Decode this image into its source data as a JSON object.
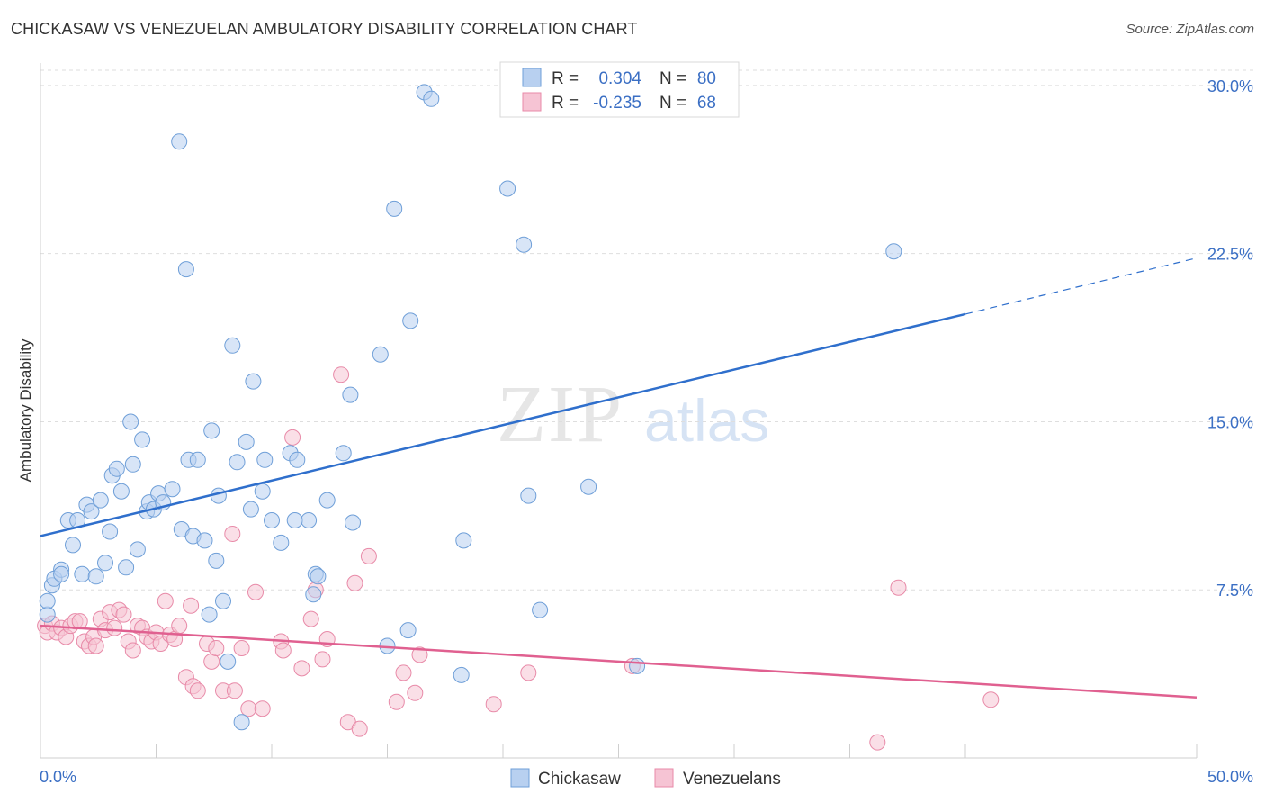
{
  "header": {
    "title": "CHICKASAW VS VENEZUELAN AMBULATORY DISABILITY CORRELATION CHART",
    "source": "Source: ZipAtlas.com"
  },
  "watermark": {
    "zip": "ZIP",
    "atlas": "atlas"
  },
  "colors": {
    "chickasaw_fill": "#b8d0f0",
    "chickasaw_stroke": "#6f9fd8",
    "chickasaw_line": "#2f6fcc",
    "venezuelan_fill": "#f6c4d4",
    "venezuelan_stroke": "#e88aa8",
    "venezuelan_line": "#e06090",
    "tick_text": "#3b6fc4"
  },
  "legend": {
    "rows": [
      {
        "r_label": "R =",
        "r_value": "0.304",
        "n_label": "N =",
        "n_value": "80"
      },
      {
        "r_label": "R =",
        "r_value": "-0.235",
        "n_label": "N =",
        "n_value": "68"
      }
    ]
  },
  "bottom_legend": {
    "items": [
      "Chickasaw",
      "Venezuelans"
    ]
  },
  "chart_data": {
    "type": "scatter",
    "title": "CHICKASAW VS VENEZUELAN AMBULATORY DISABILITY CORRELATION CHART",
    "xlabel": "",
    "ylabel": "Ambulatory Disability",
    "xlim": [
      0,
      50
    ],
    "ylim": [
      0,
      31
    ],
    "x_tick_labels": [
      "0.0%",
      "50.0%"
    ],
    "y_ticks": [
      7.5,
      15.0,
      22.5,
      30.0
    ],
    "y_tick_labels": [
      "7.5%",
      "15.0%",
      "22.5%",
      "30.0%"
    ],
    "grid": true,
    "series": [
      {
        "name": "Chickasaw",
        "r": 0.304,
        "n": 80,
        "trend": {
          "x0": 0,
          "y0": 9.9,
          "x1": 40,
          "y1": 19.8,
          "dashed_to_x": 50,
          "dashed_to_y": 22.3
        },
        "points": [
          [
            0.3,
            6.4
          ],
          [
            0.3,
            7.0
          ],
          [
            0.5,
            7.7
          ],
          [
            0.6,
            8.0
          ],
          [
            0.9,
            8.4
          ],
          [
            0.9,
            8.2
          ],
          [
            1.2,
            10.6
          ],
          [
            1.4,
            9.5
          ],
          [
            1.6,
            10.6
          ],
          [
            1.8,
            8.2
          ],
          [
            2.0,
            11.3
          ],
          [
            2.2,
            11.0
          ],
          [
            2.4,
            8.1
          ],
          [
            2.6,
            11.5
          ],
          [
            2.8,
            8.7
          ],
          [
            3.0,
            10.1
          ],
          [
            3.1,
            12.6
          ],
          [
            3.3,
            12.9
          ],
          [
            3.5,
            11.9
          ],
          [
            3.7,
            8.5
          ],
          [
            3.9,
            15.0
          ],
          [
            4.0,
            13.1
          ],
          [
            4.2,
            9.3
          ],
          [
            4.4,
            14.2
          ],
          [
            4.6,
            11.0
          ],
          [
            4.7,
            11.4
          ],
          [
            4.9,
            11.1
          ],
          [
            5.1,
            11.8
          ],
          [
            5.3,
            11.4
          ],
          [
            5.7,
            12.0
          ],
          [
            6.0,
            27.5
          ],
          [
            6.1,
            10.2
          ],
          [
            6.3,
            21.8
          ],
          [
            6.4,
            13.3
          ],
          [
            6.6,
            9.9
          ],
          [
            6.8,
            13.3
          ],
          [
            7.1,
            9.7
          ],
          [
            7.3,
            6.4
          ],
          [
            7.4,
            14.6
          ],
          [
            7.6,
            8.8
          ],
          [
            7.7,
            11.7
          ],
          [
            7.9,
            7.0
          ],
          [
            8.1,
            4.3
          ],
          [
            8.3,
            18.4
          ],
          [
            8.5,
            13.2
          ],
          [
            8.7,
            1.6
          ],
          [
            8.9,
            14.1
          ],
          [
            9.1,
            11.1
          ],
          [
            9.2,
            16.8
          ],
          [
            9.6,
            11.9
          ],
          [
            9.7,
            13.3
          ],
          [
            10.0,
            10.6
          ],
          [
            10.4,
            9.6
          ],
          [
            10.8,
            13.6
          ],
          [
            11.0,
            10.6
          ],
          [
            11.1,
            13.3
          ],
          [
            11.6,
            10.6
          ],
          [
            11.8,
            7.3
          ],
          [
            11.9,
            8.2
          ],
          [
            12.0,
            8.1
          ],
          [
            12.4,
            11.5
          ],
          [
            13.1,
            13.6
          ],
          [
            13.4,
            16.2
          ],
          [
            13.5,
            10.5
          ],
          [
            14.7,
            18.0
          ],
          [
            15.0,
            5.0
          ],
          [
            15.3,
            24.5
          ],
          [
            15.9,
            5.7
          ],
          [
            16.0,
            19.5
          ],
          [
            16.6,
            29.7
          ],
          [
            16.9,
            29.4
          ],
          [
            18.2,
            3.7
          ],
          [
            18.3,
            9.7
          ],
          [
            20.2,
            25.4
          ],
          [
            20.9,
            22.9
          ],
          [
            21.1,
            11.7
          ],
          [
            21.6,
            6.6
          ],
          [
            23.7,
            12.1
          ],
          [
            25.8,
            4.1
          ],
          [
            36.9,
            22.6
          ]
        ]
      },
      {
        "name": "Venezuelans",
        "r": -0.235,
        "n": 68,
        "trend": {
          "x0": 0,
          "y0": 5.9,
          "x1": 50,
          "y1": 2.7
        },
        "points": [
          [
            0.2,
            5.9
          ],
          [
            0.3,
            5.6
          ],
          [
            0.5,
            6.0
          ],
          [
            0.7,
            5.6
          ],
          [
            0.9,
            5.8
          ],
          [
            1.1,
            5.4
          ],
          [
            1.3,
            5.9
          ],
          [
            1.5,
            6.1
          ],
          [
            1.7,
            6.1
          ],
          [
            1.9,
            5.2
          ],
          [
            2.1,
            5.0
          ],
          [
            2.3,
            5.4
          ],
          [
            2.4,
            5.0
          ],
          [
            2.6,
            6.2
          ],
          [
            2.8,
            5.7
          ],
          [
            3.0,
            6.5
          ],
          [
            3.2,
            5.8
          ],
          [
            3.4,
            6.6
          ],
          [
            3.6,
            6.4
          ],
          [
            3.8,
            5.2
          ],
          [
            4.0,
            4.8
          ],
          [
            4.2,
            5.9
          ],
          [
            4.4,
            5.8
          ],
          [
            4.6,
            5.4
          ],
          [
            4.8,
            5.2
          ],
          [
            5.0,
            5.6
          ],
          [
            5.2,
            5.1
          ],
          [
            5.4,
            7.0
          ],
          [
            5.6,
            5.5
          ],
          [
            5.8,
            5.3
          ],
          [
            6.0,
            5.9
          ],
          [
            6.3,
            3.6
          ],
          [
            6.5,
            6.8
          ],
          [
            6.6,
            3.2
          ],
          [
            6.8,
            3.0
          ],
          [
            7.2,
            5.1
          ],
          [
            7.4,
            4.3
          ],
          [
            7.6,
            4.9
          ],
          [
            7.9,
            3.0
          ],
          [
            8.3,
            10.0
          ],
          [
            8.4,
            3.0
          ],
          [
            8.7,
            4.9
          ],
          [
            9.0,
            2.2
          ],
          [
            9.3,
            7.4
          ],
          [
            9.6,
            2.2
          ],
          [
            10.4,
            5.2
          ],
          [
            10.5,
            4.8
          ],
          [
            10.9,
            14.3
          ],
          [
            11.3,
            4.0
          ],
          [
            11.7,
            6.2
          ],
          [
            11.9,
            7.5
          ],
          [
            12.2,
            4.4
          ],
          [
            12.4,
            5.3
          ],
          [
            13.0,
            17.1
          ],
          [
            13.3,
            1.6
          ],
          [
            13.6,
            7.8
          ],
          [
            13.8,
            1.3
          ],
          [
            14.2,
            9.0
          ],
          [
            15.4,
            2.5
          ],
          [
            15.7,
            3.8
          ],
          [
            16.2,
            2.9
          ],
          [
            16.4,
            4.6
          ],
          [
            19.6,
            2.4
          ],
          [
            21.1,
            3.8
          ],
          [
            25.6,
            4.1
          ],
          [
            36.2,
            0.7
          ],
          [
            37.1,
            7.6
          ],
          [
            41.1,
            2.6
          ]
        ]
      }
    ]
  }
}
